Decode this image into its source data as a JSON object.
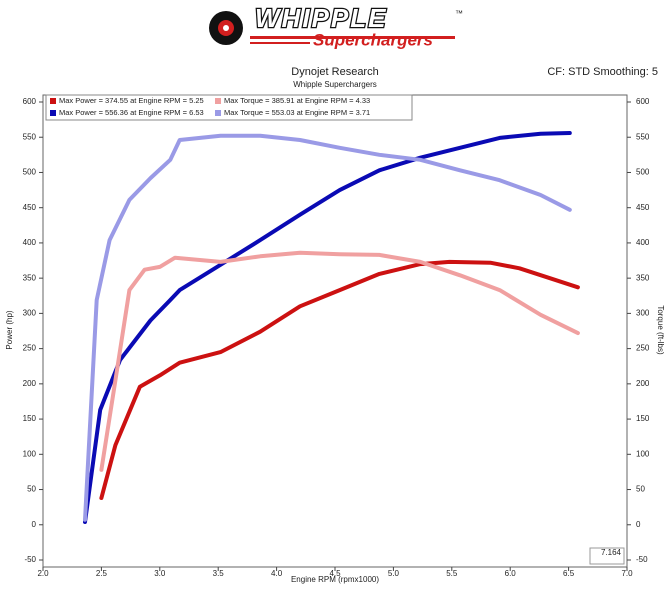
{
  "header": {
    "brand": "WHIPPLE",
    "tagline": "Superchargers",
    "tm": "™"
  },
  "chart_data": {
    "type": "line",
    "title": "Dynojet Research",
    "subtitle": "Whipple Superchargers",
    "settings_label": "CF: STD Smoothing: 5",
    "corner_label": "7.164",
    "xlabel": "Engine RPM (rpmx1000)",
    "ylabel": "Power (hp)",
    "y2label": "Torque (ft-lbs)",
    "xlim": [
      2.0,
      7.0
    ],
    "xticks": [
      {
        "value": 2,
        "label": "2.0"
      },
      {
        "value": 2.5,
        "label": "2.5"
      },
      {
        "value": 3,
        "label": "3.0"
      },
      {
        "value": 3.5,
        "label": "3.5"
      },
      {
        "value": 4,
        "label": "4.0"
      },
      {
        "value": 4.5,
        "label": "4.5"
      },
      {
        "value": 5,
        "label": "5.0"
      },
      {
        "value": 5.5,
        "label": "5.5"
      },
      {
        "value": 6,
        "label": "6.0"
      },
      {
        "value": 6.5,
        "label": "6.5"
      },
      {
        "value": 7,
        "label": "7.0"
      }
    ],
    "ylim": [
      -50,
      600
    ],
    "yticks": [
      -50,
      0,
      50,
      100,
      150,
      200,
      250,
      300,
      350,
      400,
      450,
      500,
      550,
      600
    ],
    "y2lim": [
      -50,
      600
    ],
    "y2ticks": [
      -50,
      0,
      50,
      100,
      150,
      200,
      250,
      300,
      350,
      400,
      450,
      500,
      550,
      600
    ],
    "grid": false,
    "series": [
      {
        "name": "Max Power = 374.55 at Engine RPM = 5.25",
        "color": "#cc1111",
        "x": [
          2.5,
          2.62,
          2.83,
          3.0,
          3.17,
          3.52,
          3.86,
          4.2,
          4.54,
          4.88,
          5.23,
          5.48,
          5.83,
          6.08,
          6.34,
          6.58
        ],
        "values": [
          38,
          113,
          196,
          212,
          230,
          245,
          274,
          310,
          333,
          356,
          370,
          373,
          372,
          364,
          350,
          337
        ]
      },
      {
        "name": "Max Power = 556.36 at Engine RPM = 6.53",
        "color": "#0a0ab4",
        "x": [
          2.36,
          2.49,
          2.66,
          2.92,
          3.09,
          3.17,
          3.52,
          3.86,
          4.2,
          4.54,
          4.88,
          5.23,
          5.57,
          5.91,
          6.26,
          6.51
        ],
        "values": [
          4,
          163,
          234,
          290,
          319,
          333,
          369,
          404,
          440,
          475,
          503,
          521,
          535,
          549,
          555,
          556
        ]
      },
      {
        "name": "Max Torque = 385.91 at Engine RPM = 4.33",
        "color": "#f0a0a0",
        "axis": "y2",
        "x": [
          2.5,
          2.62,
          2.74,
          2.87,
          3.0,
          3.13,
          3.52,
          3.86,
          4.2,
          4.54,
          4.88,
          5.23,
          5.57,
          5.91,
          6.26,
          6.58
        ],
        "values": [
          78,
          205,
          333,
          362,
          366,
          379,
          373,
          381,
          386,
          384,
          383,
          373,
          354,
          333,
          298,
          272
        ]
      },
      {
        "name": "Max Torque = 553.03 at Engine RPM = 3.71",
        "color": "#9a9ae6",
        "axis": "y2",
        "x": [
          2.36,
          2.46,
          2.57,
          2.74,
          2.92,
          3.09,
          3.17,
          3.52,
          3.86,
          4.2,
          4.54,
          4.88,
          5.23,
          5.57,
          5.91,
          6.26,
          6.51
        ],
        "values": [
          7,
          319,
          404,
          461,
          492,
          518,
          546,
          552,
          552,
          546,
          535,
          525,
          518,
          503,
          489,
          468,
          447
        ]
      }
    ]
  }
}
